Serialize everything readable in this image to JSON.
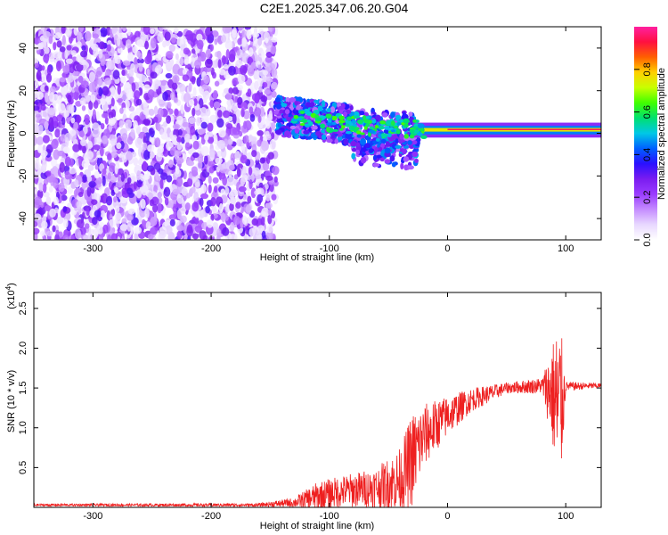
{
  "title": "C2E1.2025.347.06.20.G04",
  "chart_data": [
    {
      "type": "heatmap",
      "xlabel": "Height of straight line (km)",
      "ylabel": "Frequency (Hz)",
      "xlim": [
        -350,
        130
      ],
      "ylim": [
        -50,
        50
      ],
      "x_ticks": [
        "-300",
        "-200",
        "-100",
        "0",
        "100"
      ],
      "y_ticks": [
        "-40",
        "-20",
        "0",
        "20",
        "40"
      ],
      "colorbar": {
        "label": "Normalized spectral amplitude",
        "ticks": [
          "0.0",
          "0.2",
          "0.4",
          "0.6",
          "0.8"
        ],
        "range": [
          0,
          1
        ],
        "colormap": [
          "#ffffff",
          "#e8d8ff",
          "#c58cff",
          "#9a3cff",
          "#7a1cf0",
          "#2a10ff",
          "#0060ff",
          "#00c8e6",
          "#00e070",
          "#40ff00",
          "#c8ff00",
          "#ffd000",
          "#ff6000",
          "#ff1040",
          "#ff20a0"
        ]
      },
      "noise_region_x": [
        -350,
        -145
      ],
      "signal_track": [
        {
          "x": -145,
          "f": 8
        },
        {
          "x": -120,
          "f": 7
        },
        {
          "x": -100,
          "f": 5
        },
        {
          "x": -80,
          "f": 4
        },
        {
          "x": -60,
          "f": 3
        },
        {
          "x": -40,
          "f": 2
        },
        {
          "x": -20,
          "f": 2
        },
        {
          "x": 0,
          "f": 2
        },
        {
          "x": 50,
          "f": 1.5
        },
        {
          "x": 90,
          "f": 1.5
        },
        {
          "x": 130,
          "f": 1.5
        }
      ]
    },
    {
      "type": "line",
      "xlabel": "Height of straight line (km)",
      "ylabel": "SNR (10 * v/v)",
      "multiplier": "(x10",
      "multiplier_exp": "4",
      "xlim": [
        -350,
        130
      ],
      "ylim": [
        0,
        27000
      ],
      "x_ticks": [
        "-300",
        "-200",
        "-100",
        "0",
        "100"
      ],
      "y_ticks": [
        "0.5",
        "1.0",
        "1.5",
        "2.0",
        "2.5"
      ],
      "color": "#ee2020",
      "series": [
        {
          "envelope": [
            {
              "x": -350,
              "base": 300,
              "amp": 150
            },
            {
              "x": -160,
              "base": 300,
              "amp": 200
            },
            {
              "x": -130,
              "base": 600,
              "amp": 600
            },
            {
              "x": -110,
              "base": 1400,
              "amp": 1800
            },
            {
              "x": -90,
              "base": 2000,
              "amp": 2000
            },
            {
              "x": -60,
              "base": 2500,
              "amp": 2500
            },
            {
              "x": -40,
              "base": 3500,
              "amp": 4000
            },
            {
              "x": -30,
              "base": 6000,
              "amp": 6000
            },
            {
              "x": -20,
              "base": 9000,
              "amp": 4000
            },
            {
              "x": 0,
              "base": 11500,
              "amp": 2500
            },
            {
              "x": 20,
              "base": 13500,
              "amp": 1500
            },
            {
              "x": 50,
              "base": 15000,
              "amp": 700
            },
            {
              "x": 80,
              "base": 15300,
              "amp": 1000
            },
            {
              "x": 88,
              "base": 14500,
              "amp": 6000
            },
            {
              "x": 95,
              "base": 12000,
              "amp": 12000
            },
            {
              "x": 100,
              "base": 15200,
              "amp": 600
            },
            {
              "x": 130,
              "base": 15300,
              "amp": 300
            }
          ]
        }
      ]
    }
  ]
}
